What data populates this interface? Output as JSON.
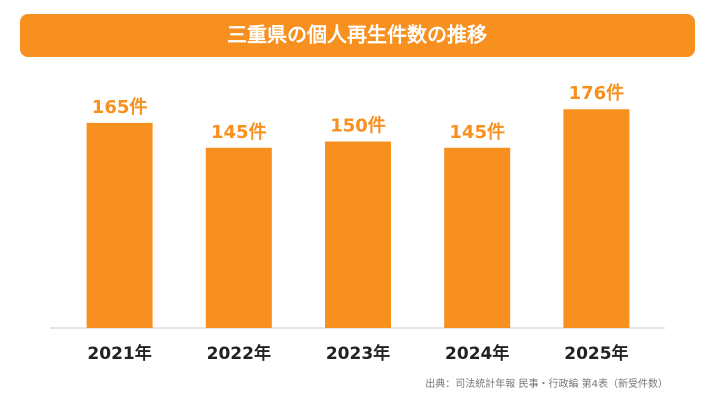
{
  "chart_data": {
    "type": "bar",
    "title": "三重県の個人再生件数の推移",
    "categories": [
      "2021年",
      "2022年",
      "2023年",
      "2024年",
      "2025年"
    ],
    "values": [
      165,
      145,
      150,
      145,
      176
    ],
    "value_labels": [
      "165件",
      "145件",
      "150件",
      "145件",
      "176件"
    ],
    "color": "#f7901e",
    "source": "出典：司法統計年報 民事・行政編 第4表（新受件数）"
  }
}
